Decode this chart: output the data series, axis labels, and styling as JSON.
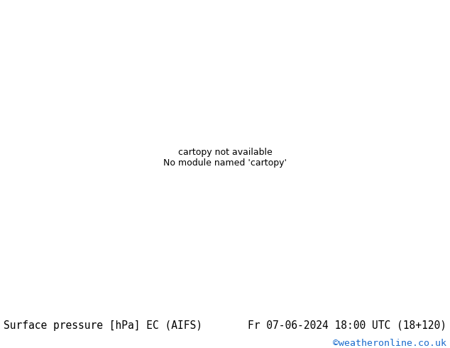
{
  "background_color": "#ffffff",
  "land_color": "#b5d98a",
  "ocean_color": "#d8eef5",
  "lake_color": "#d8eef5",
  "gray_land": "#c8c8c8",
  "coastline_color": "#333333",
  "border_color": "#888888",
  "contour_blue": "#0000cc",
  "contour_red": "#cc0000",
  "contour_black": "#000000",
  "footer_left": "Surface pressure [hPa] EC (AIFS)",
  "footer_right": "Fr 07-06-2024 18:00 UTC (18+120)",
  "footer_credit": "©weatheronline.co.uk",
  "footer_credit_color": "#1a6bcc",
  "footer_text_color": "#000000",
  "footer_font_size": 10.5,
  "credit_font_size": 9.5,
  "fig_width": 6.34,
  "fig_height": 4.9,
  "dpi": 100,
  "extent": [
    18,
    112,
    -5,
    62
  ],
  "label_fontsize": 6.5
}
